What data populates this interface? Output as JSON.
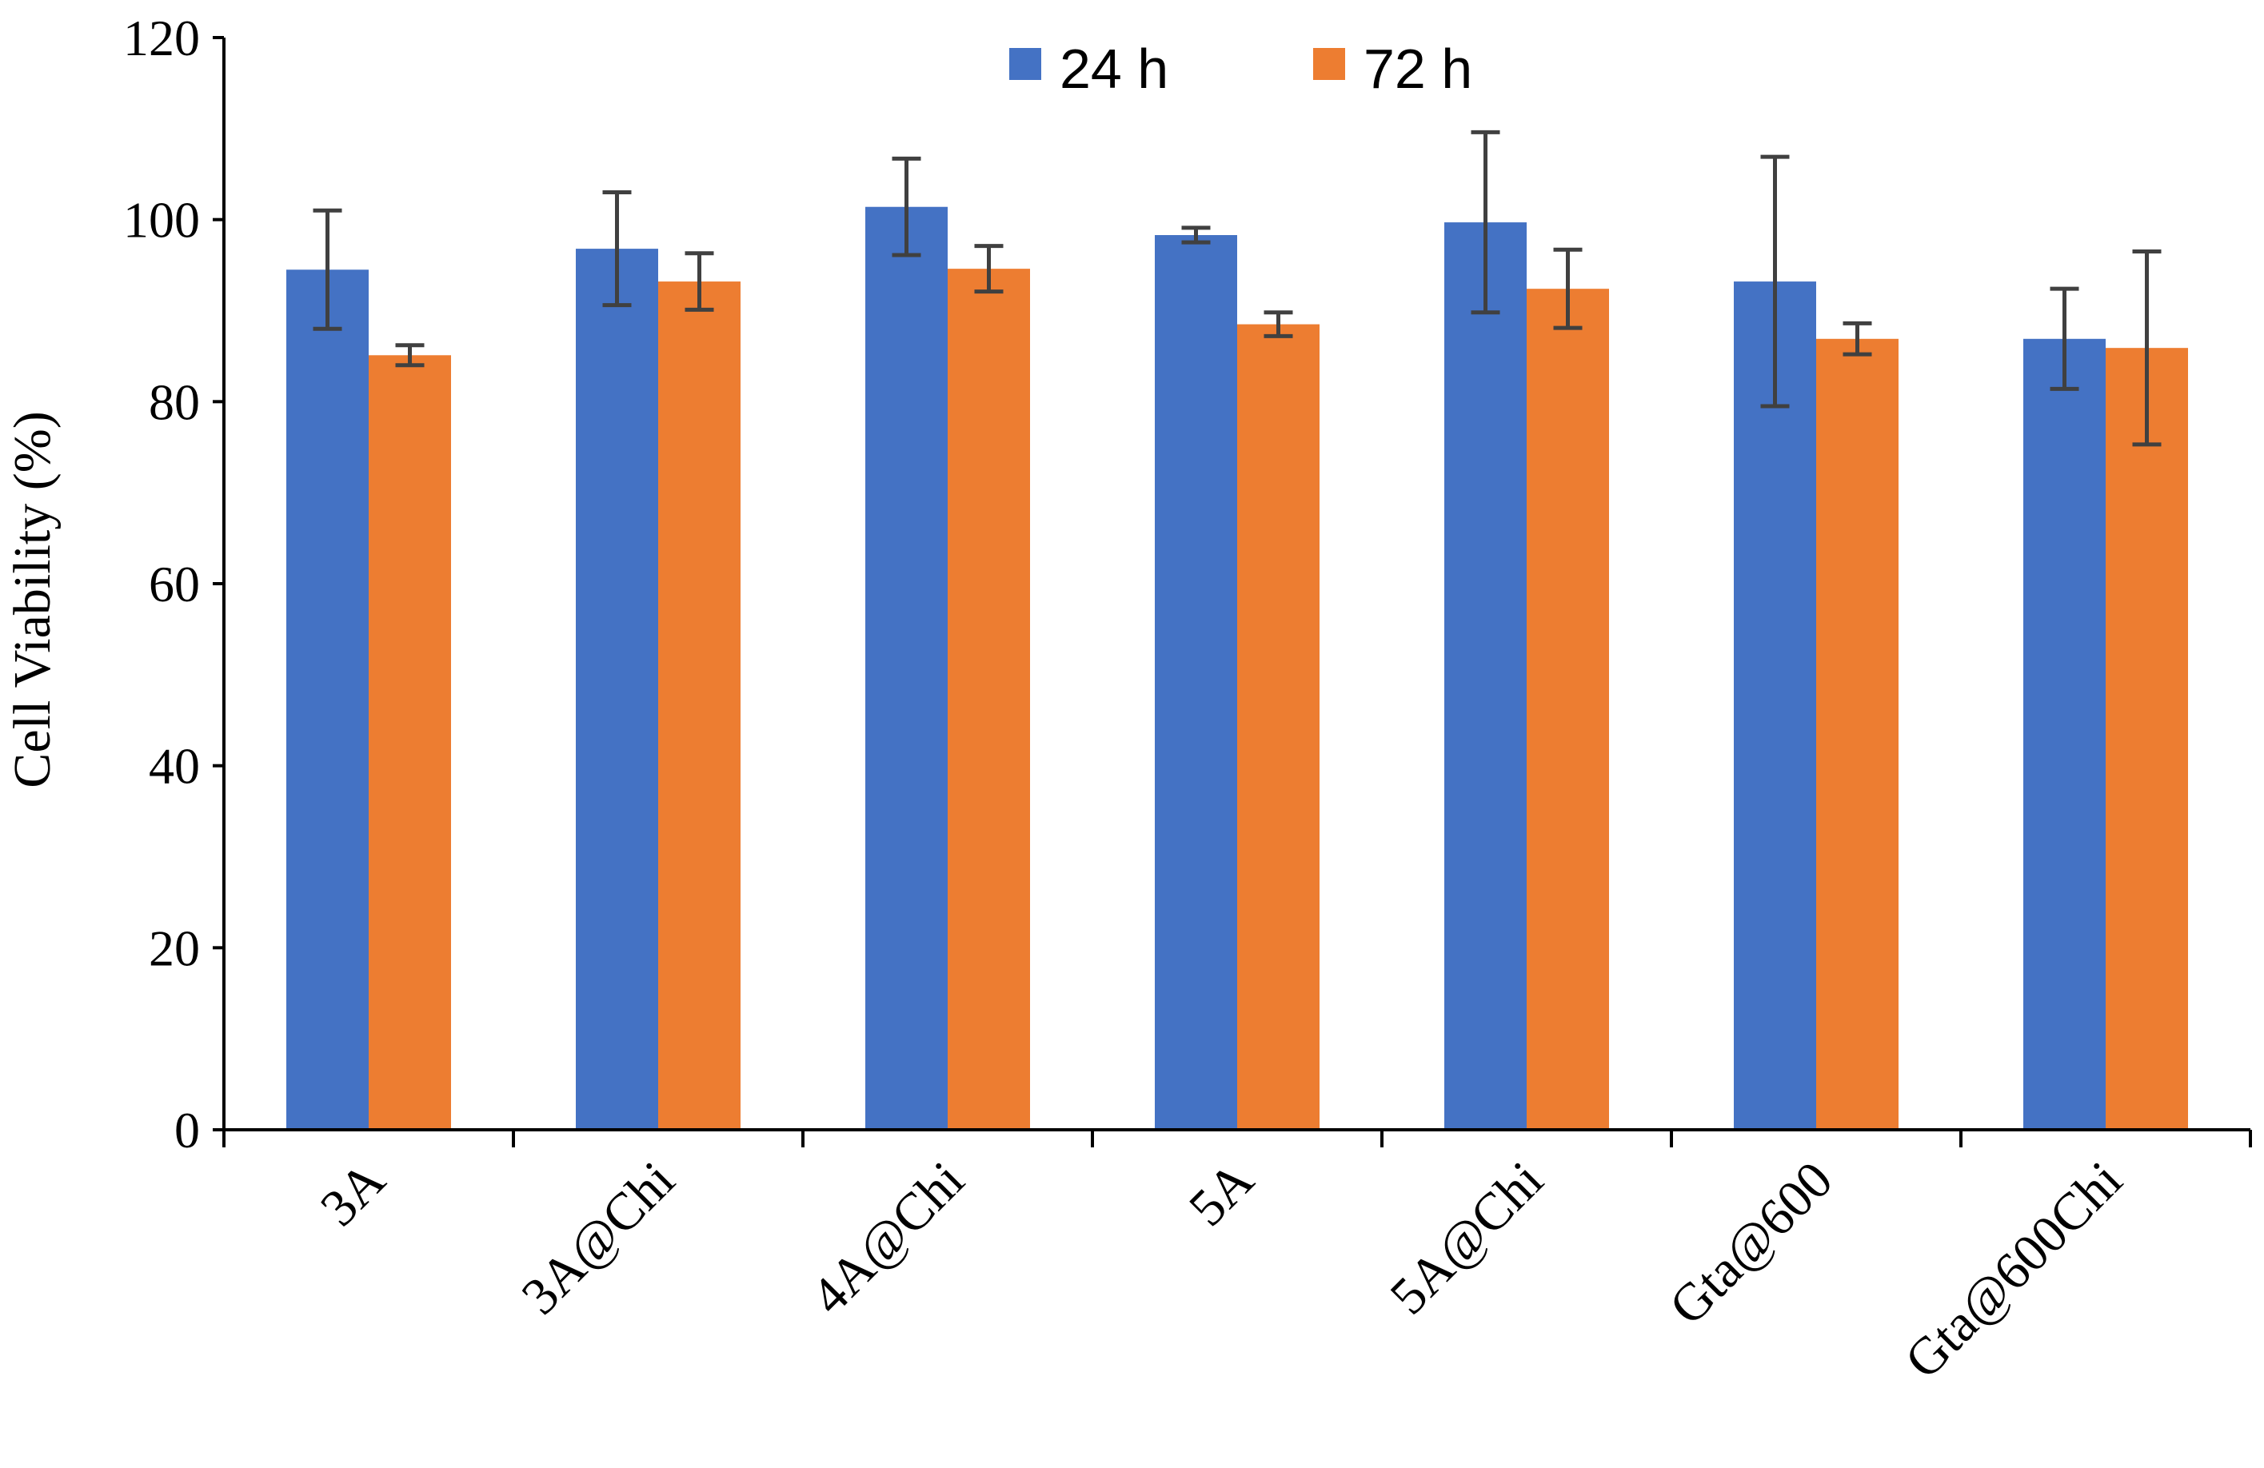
{
  "chart_data": {
    "type": "bar",
    "title": "",
    "xlabel": "",
    "ylabel": "Cell Viability (%)",
    "ylim": [
      0,
      120
    ],
    "yticks": [
      0,
      20,
      40,
      60,
      80,
      100,
      120
    ],
    "categories": [
      "3A",
      "3A@Chi",
      "4A@Chi",
      "5A",
      "5A@Chi",
      "Gta@600",
      "Gta@600Chi"
    ],
    "series": [
      {
        "name": "24 h",
        "color": "#4472C4",
        "values": [
          94.5,
          96.8,
          101.4,
          98.3,
          99.7,
          93.2,
          86.9
        ],
        "errors": [
          6.5,
          6.2,
          5.3,
          0.8,
          9.9,
          13.7,
          5.5
        ]
      },
      {
        "name": "72 h",
        "color": "#ED7D31",
        "values": [
          85.1,
          93.2,
          94.6,
          88.5,
          92.4,
          86.9,
          85.9
        ],
        "errors": [
          1.1,
          3.1,
          2.5,
          1.3,
          4.3,
          1.7,
          10.6
        ]
      }
    ],
    "legend_position": "top-center",
    "grid": false
  }
}
